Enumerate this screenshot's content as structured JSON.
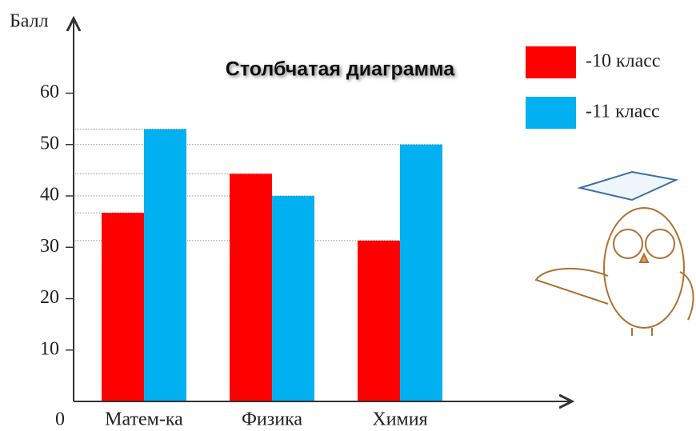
{
  "chart_data": {
    "type": "bar",
    "title": "Столбчатая диаграмма",
    "y_label": "Балл",
    "categories": [
      "Матем-ка",
      "Физика",
      "Химия"
    ],
    "series": [
      {
        "name": "-10 класс",
        "color": "#ff0000",
        "values": [
          36.7,
          44.3,
          31.3
        ]
      },
      {
        "name": "-11 класс",
        "color": "#00b0f0",
        "values": [
          53,
          40,
          50
        ]
      }
    ],
    "ylim": [
      0,
      73
    ],
    "yticks": [
      0,
      10,
      20,
      30,
      40,
      50,
      60
    ],
    "reference_lines": true,
    "legend": "top-right"
  }
}
